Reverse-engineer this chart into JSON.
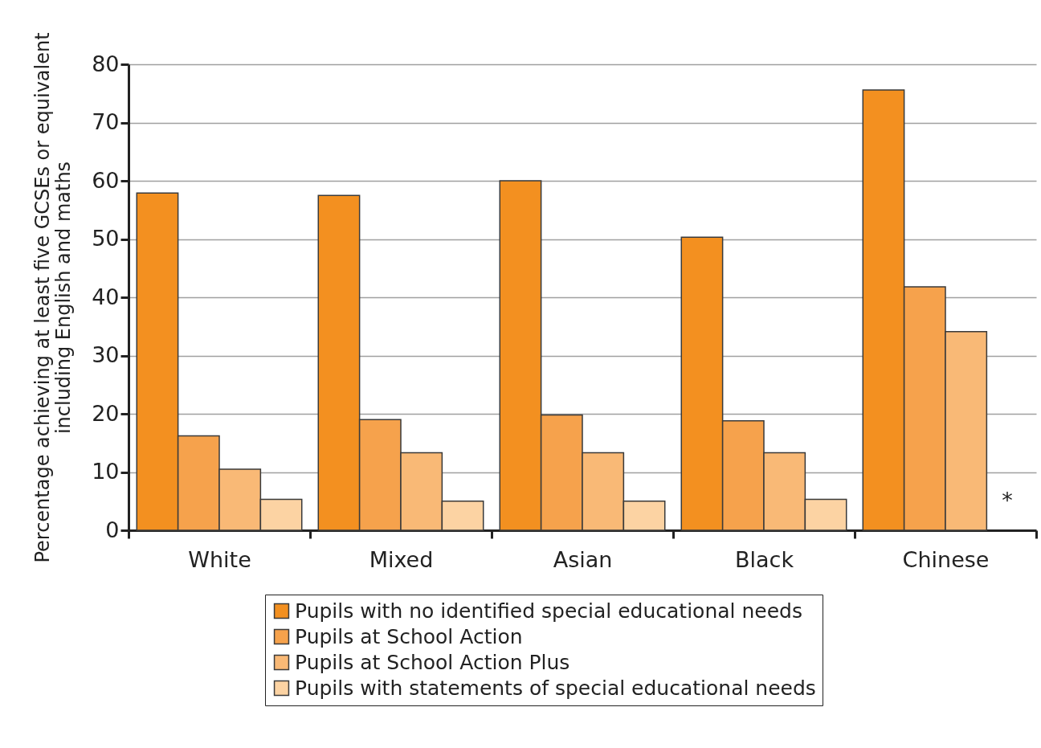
{
  "chart_data": {
    "type": "bar",
    "ylabel": "Percentage achieving at least five GCSEs or equivalent\nincluding English and maths",
    "categories": [
      "White",
      "Mixed",
      "Asian",
      "Black",
      "Chinese"
    ],
    "series": [
      {
        "name": "Pupils with no identified special educational needs",
        "color": "#f39020",
        "values": [
          57.9,
          57.5,
          60.0,
          50.3,
          75.6
        ]
      },
      {
        "name": "Pupils at School Action",
        "color": "#f6a24c",
        "values": [
          16.2,
          19.0,
          19.8,
          18.8,
          41.8
        ]
      },
      {
        "name": "Pupils at School Action Plus",
        "color": "#f9b976",
        "values": [
          10.5,
          13.3,
          13.3,
          13.3,
          34.1
        ]
      },
      {
        "name": "Pupils with statements of special educational needs",
        "color": "#fcd3a3",
        "values": [
          5.3,
          5.0,
          5.0,
          5.3,
          null
        ]
      }
    ],
    "annotations": [
      {
        "text": "*",
        "x": "Chinese",
        "y": 5
      }
    ],
    "ylim": [
      0,
      80
    ],
    "yticks": [
      0,
      10,
      20,
      30,
      40,
      50,
      60,
      70,
      80
    ],
    "grid": "y",
    "legend": "bottom"
  }
}
